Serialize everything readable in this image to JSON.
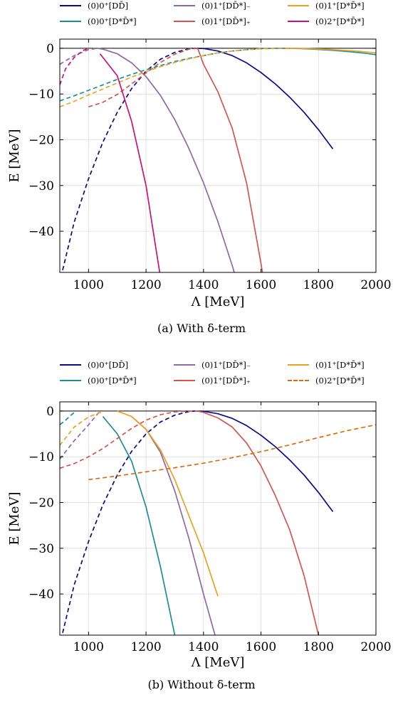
{
  "chart_data": [
    {
      "type": "line",
      "caption": "(a) With δ-term",
      "xlabel": "Λ [MeV]",
      "ylabel": "E [MeV]",
      "xlim": [
        900,
        2000
      ],
      "ylim": [
        -49,
        2
      ],
      "xticks": [
        "1000",
        "1200",
        "1400",
        "1600",
        "1800",
        "2000"
      ],
      "yticks": [
        "0",
        "−10",
        "−20",
        "−30",
        "−40"
      ],
      "grid": true,
      "legend_position": "top, above plot (3 columns)",
      "series": [
        {
          "name": "(0)0⁺[DD̄]",
          "color": "#0a0a8c",
          "segments": [
            {
              "style": "dashed",
              "x": [
                910,
                950,
                1000,
                1050,
                1100,
                1150,
                1200,
                1250,
                1300,
                1350,
                1370
              ],
              "y": [
                -48.5,
                -38,
                -28.5,
                -20.5,
                -14,
                -8.8,
                -5,
                -2.4,
                -0.9,
                -0.1,
                0
              ]
            },
            {
              "style": "solid",
              "x": [
                1370,
                1400,
                1450,
                1500,
                1550,
                1600,
                1650,
                1700,
                1750,
                1800,
                1850
              ],
              "y": [
                0,
                -0.05,
                -0.6,
                -1.6,
                -3.2,
                -5.3,
                -7.8,
                -10.7,
                -14,
                -17.8,
                -22
              ]
            }
          ]
        },
        {
          "name": "(0)0⁺[D*D̄*]",
          "color": "#1a9090",
          "segments": [
            {
              "style": "dashed",
              "x": [
                900,
                950,
                1000,
                1050,
                1100,
                1150,
                1200,
                1250,
                1300,
                1350,
                1400,
                1450,
                1500,
                1550,
                1600,
                1650
              ],
              "y": [
                -11.5,
                -10.4,
                -9.2,
                -8.0,
                -6.8,
                -5.7,
                -4.7,
                -3.8,
                -2.9,
                -2.2,
                -1.6,
                -1.0,
                -0.6,
                -0.3,
                -0.1,
                0
              ]
            },
            {
              "style": "solid",
              "x": [
                1650,
                1700,
                1750,
                1800,
                1850,
                1900,
                1950,
                2000
              ],
              "y": [
                0,
                0,
                -0.1,
                -0.25,
                -0.45,
                -0.7,
                -1.0,
                -1.4
              ]
            }
          ]
        },
        {
          "name": "(0)1⁺[DD̄*]₋",
          "color": "#8c6aa5",
          "segments": [
            {
              "style": "dashed",
              "x": [
                900,
                950,
                1000,
                1030
              ],
              "y": [
                -3.5,
                -1.6,
                -0.3,
                0
              ]
            },
            {
              "style": "solid",
              "x": [
                1030,
                1050,
                1100,
                1150,
                1200,
                1250,
                1300,
                1350,
                1400,
                1450,
                1500,
                1550,
                1580
              ],
              "y": [
                0,
                -0.2,
                -1.2,
                -3.2,
                -6.2,
                -10.3,
                -15.6,
                -22,
                -29.4,
                -37.9,
                -47.5,
                -58,
                -64
              ]
            }
          ]
        },
        {
          "name": "(0)1⁺[DD̄*]₊",
          "color": "#d45550",
          "segments": [
            {
              "style": "dashed",
              "x": [
                1000,
                1050,
                1100,
                1150,
                1200,
                1250,
                1300,
                1350,
                1380
              ],
              "y": [
                -12.8,
                -11.8,
                -10.1,
                -7.8,
                -5.4,
                -3.1,
                -1.3,
                -0.2,
                0
              ]
            },
            {
              "style": "solid",
              "x": [
                1380,
                1400,
                1450,
                1500,
                1550,
                1600,
                1620
              ],
              "y": [
                0,
                -3.5,
                -9.5,
                -17.5,
                -29.5,
                -47,
                -55
              ]
            }
          ]
        },
        {
          "name": "(0)1⁺[D*D̄*]",
          "color": "#f0a020",
          "segments": [
            {
              "style": "dashed",
              "x": [
                900,
                950,
                1000,
                1050,
                1100,
                1150,
                1200,
                1250,
                1300,
                1350,
                1400,
                1450,
                1500,
                1550,
                1600,
                1650,
                1700
              ],
              "y": [
                -12.8,
                -11.6,
                -10.2,
                -8.9,
                -7.6,
                -6.3,
                -5.1,
                -4.0,
                -3.1,
                -2.3,
                -1.6,
                -1.0,
                -0.6,
                -0.3,
                -0.1,
                -0.05,
                0
              ]
            },
            {
              "style": "solid",
              "x": [
                1700,
                1750,
                1800,
                1850,
                1900,
                1950,
                2000
              ],
              "y": [
                0,
                -0.05,
                -0.15,
                -0.3,
                -0.5,
                -0.7,
                -1.0
              ]
            }
          ]
        },
        {
          "name": "(0)2⁺[D*D̄*]",
          "color": "#cc1177",
          "segments": [
            {
              "style": "dashed",
              "x": [
                900,
                920,
                950,
                980,
                1000
              ],
              "y": [
                -8,
                -4.5,
                -2,
                -0.5,
                0
              ]
            },
            {
              "style": "solid",
              "x": [
                1040,
                1100,
                1150,
                1200,
                1230,
                1250
              ],
              "y": [
                -1.2,
                -6,
                -16,
                -30,
                -42,
                -50
              ]
            }
          ]
        }
      ]
    },
    {
      "type": "line",
      "caption": "(b) Without δ-term",
      "xlabel": "Λ [MeV]",
      "ylabel": "E [MeV]",
      "xlim": [
        900,
        2000
      ],
      "ylim": [
        -49,
        2
      ],
      "xticks": [
        "1000",
        "1200",
        "1400",
        "1600",
        "1800",
        "2000"
      ],
      "yticks": [
        "0",
        "−10",
        "−20",
        "−30",
        "−40"
      ],
      "grid": true,
      "legend_position": "top, above plot (3 columns)",
      "series": [
        {
          "name": "(0)0⁺[DD̄]",
          "color": "#0a0a8c",
          "segments": [
            {
              "style": "dashed",
              "x": [
                910,
                950,
                1000,
                1050,
                1100,
                1150,
                1200,
                1250,
                1300,
                1350,
                1370
              ],
              "y": [
                -48.5,
                -38,
                -28.5,
                -20.5,
                -14,
                -8.8,
                -5,
                -2.4,
                -0.9,
                -0.1,
                0
              ]
            },
            {
              "style": "solid",
              "x": [
                1370,
                1400,
                1450,
                1500,
                1550,
                1600,
                1650,
                1700,
                1750,
                1800,
                1850
              ],
              "y": [
                0,
                -0.05,
                -0.6,
                -1.6,
                -3.2,
                -5.3,
                -7.8,
                -10.7,
                -14,
                -17.8,
                -22
              ]
            }
          ]
        },
        {
          "name": "(0)0⁺[D*D̄*]",
          "color": "#1a9090",
          "segments": [
            {
              "style": "dashed",
              "x": [
                900,
                920,
                950
              ],
              "y": [
                -3,
                -2,
                -0.3
              ]
            },
            {
              "style": "solid",
              "x": [
                1050,
                1100,
                1150,
                1200,
                1250,
                1300
              ],
              "y": [
                -1.2,
                -5,
                -11,
                -21,
                -34,
                -49
              ]
            }
          ]
        },
        {
          "name": "(0)1⁺[DD̄*]₋",
          "color": "#8c6aa5",
          "segments": [
            {
              "style": "dashed",
              "x": [
                900,
                950,
                1000,
                1040
              ],
              "y": [
                -10.5,
                -6.5,
                -3,
                0
              ]
            },
            {
              "style": "solid",
              "x": [
                1150,
                1200,
                1250,
                1300,
                1350,
                1400,
                1440
              ],
              "y": [
                -1.2,
                -4,
                -9,
                -17.5,
                -28,
                -40,
                -49
              ]
            }
          ]
        },
        {
          "name": "(0)1⁺[DD̄*]₊",
          "color": "#d45550",
          "segments": [
            {
              "style": "dashed",
              "x": [
                900,
                950,
                1000,
                1050,
                1100,
                1150,
                1200,
                1250,
                1300,
                1350,
                1380
              ],
              "y": [
                -12.5,
                -11.5,
                -10,
                -8.2,
                -6,
                -3.8,
                -2,
                -0.8,
                -0.2,
                -0.02,
                0
              ]
            },
            {
              "style": "solid",
              "x": [
                1380,
                1400,
                1450,
                1500,
                1550,
                1600,
                1650,
                1700,
                1750,
                1800
              ],
              "y": [
                0,
                -0.3,
                -1.5,
                -3.5,
                -7,
                -12,
                -18.5,
                -26,
                -36,
                -49
              ]
            }
          ]
        },
        {
          "name": "(0)1⁺[D*D̄*]",
          "color": "#f0a020",
          "segments": [
            {
              "style": "dashed",
              "x": [
                900,
                950,
                1000,
                1050
              ],
              "y": [
                -7.5,
                -3.5,
                -1.3,
                -0.1
              ]
            },
            {
              "style": "solid",
              "x": [
                1100,
                1150,
                1200,
                1250,
                1300,
                1350,
                1400,
                1450
              ],
              "y": [
                0,
                -1.2,
                -4,
                -8.5,
                -15,
                -23,
                -31,
                -40.5
              ]
            }
          ]
        },
        {
          "name": "(0)2⁺[D*D̄*]",
          "color": "#e06a10",
          "segments": [
            {
              "style": "dashed",
              "x": [
                1000,
                1100,
                1200,
                1300,
                1400,
                1500,
                1600,
                1700,
                1800,
                1900,
                2000
              ],
              "y": [
                -15,
                -14.2,
                -13.3,
                -12.4,
                -11.4,
                -10.2,
                -8.9,
                -7.4,
                -5.8,
                -4.3,
                -3
              ]
            }
          ]
        }
      ]
    }
  ]
}
